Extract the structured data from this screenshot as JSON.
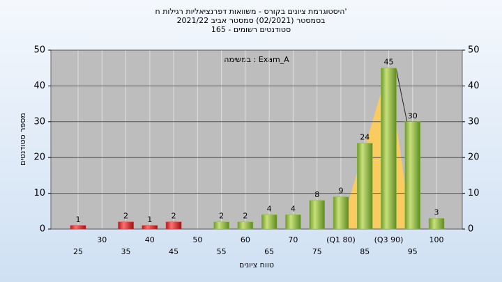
{
  "chart_data": {
    "type": "bar",
    "title": "היסטוגרמת ציונים בקורס - משוואות דפרנציאליות רגילות ח'",
    "subtitle": "בסמסטר  (02/2021)  סמסטר אביב 2021/22",
    "subtitle2": "סטודנטים רשומים - 165",
    "annotation": "במשימה : Exam_A",
    "x_label": "טווח ציונים",
    "y_label": "מספר סטודנטים",
    "categories": [
      "25",
      "30",
      "35",
      "40",
      "45",
      "50",
      "55",
      "60",
      "65",
      "70",
      "75",
      "(Q1 80)",
      "85",
      "(Q3 90)",
      "95",
      "100"
    ],
    "values": [
      1,
      0,
      2,
      1,
      2,
      0,
      2,
      2,
      4,
      4,
      8,
      9,
      24,
      45,
      30,
      3
    ],
    "colors": [
      "#e03030",
      "#e03030",
      "#e03030",
      "#e03030",
      "#e03030",
      "#8cb840",
      "#8cb840",
      "#8cb840",
      "#8cb840",
      "#8cb840",
      "#8cb840",
      "#8cb840",
      "#8cb840",
      "#8cb840",
      "#8cb840",
      "#8cb840"
    ],
    "ylim": [
      0,
      50
    ],
    "yticks": [
      0,
      10,
      20,
      30,
      40,
      50
    ],
    "y2lim": [
      0,
      50
    ],
    "y2ticks": [
      0,
      10,
      20,
      30,
      40,
      50
    ],
    "grid": true
  }
}
